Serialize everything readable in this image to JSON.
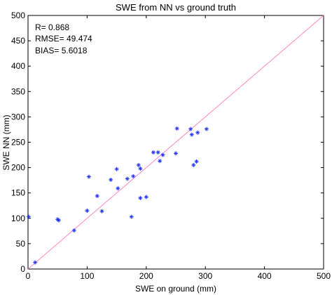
{
  "chart_data": {
    "type": "scatter",
    "title": "SWE from NN vs ground truth",
    "xlabel": "SWE on ground (mm)",
    "ylabel": "SWE NN (mm)",
    "xlim": [
      0,
      500
    ],
    "ylim": [
      0,
      500
    ],
    "xticks": [
      0,
      100,
      200,
      300,
      400,
      500
    ],
    "yticks": [
      0,
      50,
      100,
      150,
      200,
      250,
      300,
      350,
      400,
      450,
      500
    ],
    "grid": false,
    "annotations": [
      "R= 0.868",
      "RMSE= 49.474",
      "BIAS= 5.6018"
    ],
    "reference_line": {
      "from": [
        0,
        0
      ],
      "to": [
        500,
        500
      ],
      "color": "#ff88c8"
    },
    "marker_color": "#2233ee",
    "points": [
      {
        "x": 1,
        "y": 103
      },
      {
        "x": 12,
        "y": 13
      },
      {
        "x": 50,
        "y": 98
      },
      {
        "x": 52,
        "y": 96
      },
      {
        "x": 78,
        "y": 76
      },
      {
        "x": 100,
        "y": 115
      },
      {
        "x": 103,
        "y": 182
      },
      {
        "x": 117,
        "y": 144
      },
      {
        "x": 125,
        "y": 114
      },
      {
        "x": 140,
        "y": 176
      },
      {
        "x": 150,
        "y": 197
      },
      {
        "x": 152,
        "y": 159
      },
      {
        "x": 168,
        "y": 178
      },
      {
        "x": 175,
        "y": 103
      },
      {
        "x": 178,
        "y": 183
      },
      {
        "x": 187,
        "y": 205
      },
      {
        "x": 190,
        "y": 140
      },
      {
        "x": 190,
        "y": 198
      },
      {
        "x": 200,
        "y": 142
      },
      {
        "x": 212,
        "y": 230
      },
      {
        "x": 220,
        "y": 230
      },
      {
        "x": 223,
        "y": 213
      },
      {
        "x": 228,
        "y": 225
      },
      {
        "x": 250,
        "y": 228
      },
      {
        "x": 252,
        "y": 277
      },
      {
        "x": 275,
        "y": 276
      },
      {
        "x": 277,
        "y": 265
      },
      {
        "x": 280,
        "y": 205
      },
      {
        "x": 285,
        "y": 212
      },
      {
        "x": 287,
        "y": 269
      },
      {
        "x": 302,
        "y": 276
      }
    ]
  }
}
